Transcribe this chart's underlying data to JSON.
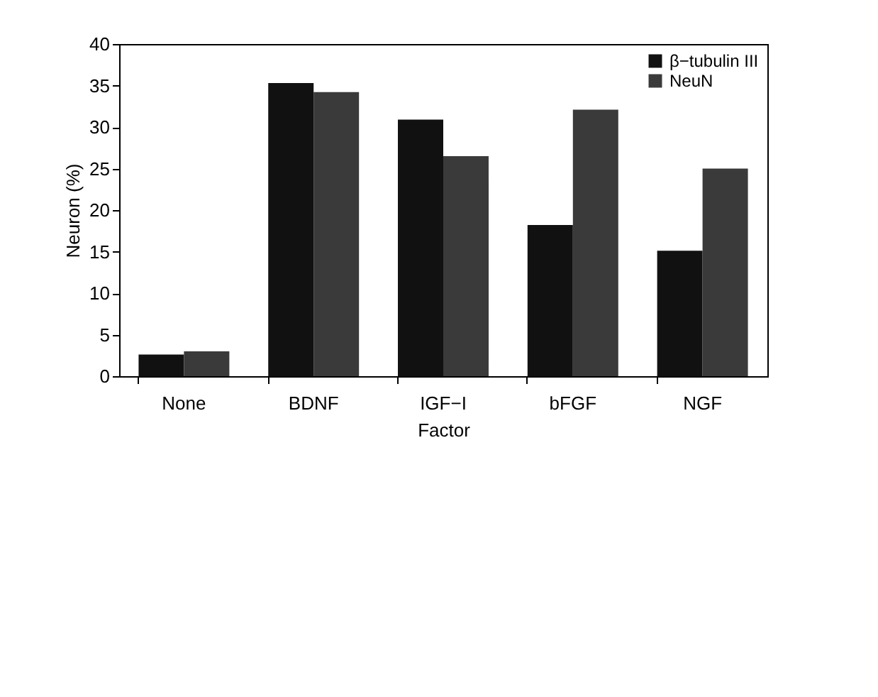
{
  "chart_data": {
    "type": "bar",
    "xlabel": "Factor",
    "ylabel": "Neuron (%)",
    "categories": [
      "None",
      "BDNF",
      "IGF−I",
      "bFGF",
      "NGF"
    ],
    "series": [
      {
        "name": "β−tubulin III",
        "color": "#111111",
        "values": [
          2.6,
          35.3,
          30.9,
          18.2,
          15.1
        ]
      },
      {
        "name": "NeuN",
        "color": "#3a3a3a",
        "values": [
          3.0,
          34.2,
          26.5,
          32.1,
          25.0
        ]
      }
    ],
    "ylim": [
      0,
      40
    ],
    "yticks": [
      0,
      5,
      10,
      15,
      20,
      25,
      30,
      35,
      40
    ],
    "grid": false,
    "legend": "top right"
  }
}
